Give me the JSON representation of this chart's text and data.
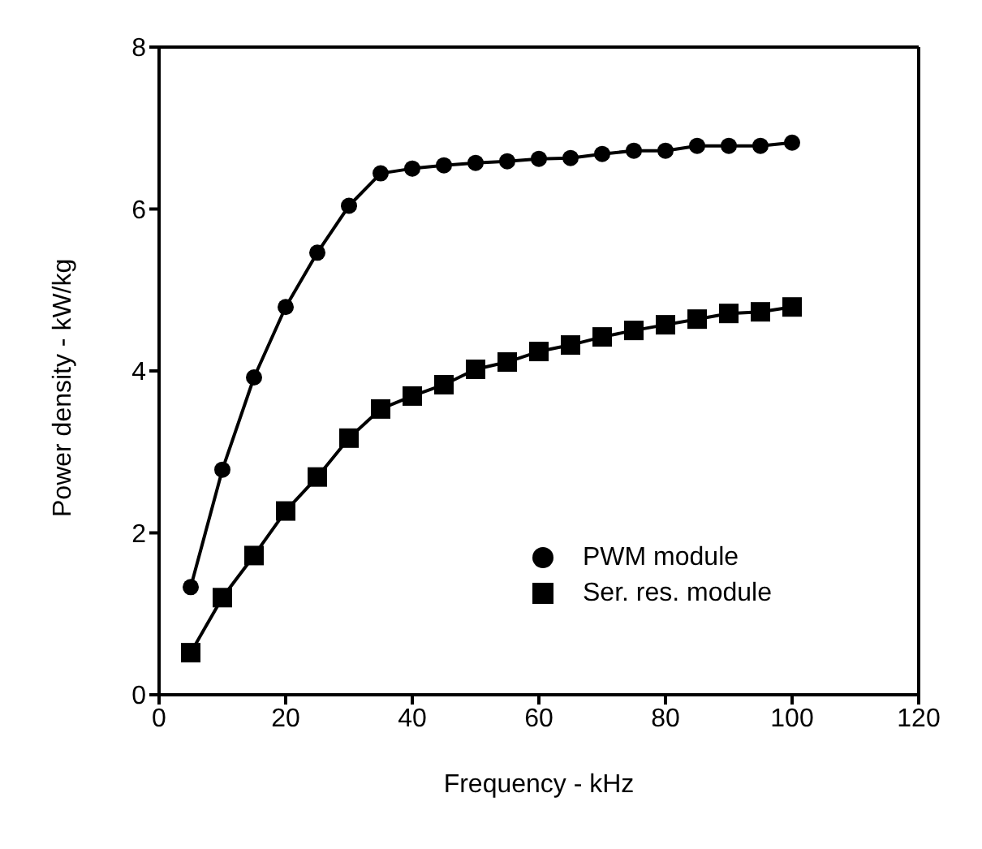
{
  "chart_data": {
    "type": "line",
    "xlabel": "Frequency - kHz",
    "ylabel": "Power density - kW/kg",
    "x": [
      5,
      10,
      15,
      20,
      25,
      30,
      35,
      40,
      45,
      50,
      55,
      60,
      65,
      70,
      75,
      80,
      85,
      90,
      95,
      100
    ],
    "series": [
      {
        "name": "Ser. res. module",
        "color": "#000000",
        "marker": "square",
        "values": [
          0.52,
          1.2,
          1.72,
          2.27,
          2.69,
          3.17,
          3.53,
          3.69,
          3.83,
          4.02,
          4.11,
          4.24,
          4.32,
          4.42,
          4.5,
          4.57,
          4.64,
          4.71,
          4.73,
          4.79
        ]
      },
      {
        "name": "PWM module",
        "color": "#000000",
        "marker": "circle",
        "values": [
          1.33,
          2.78,
          3.92,
          4.79,
          5.46,
          6.04,
          6.44,
          6.5,
          6.54,
          6.57,
          6.59,
          6.62,
          6.63,
          6.68,
          6.72,
          6.72,
          6.78,
          6.78,
          6.78,
          6.82
        ]
      }
    ],
    "xlim": [
      0,
      120
    ],
    "xticks": [
      0,
      20,
      40,
      60,
      80,
      100,
      120
    ],
    "ylim": [
      0,
      8
    ],
    "yticks": [
      0,
      2,
      4,
      6,
      8
    ],
    "grid": false,
    "legend": "bottom right",
    "line_style": "solid"
  }
}
